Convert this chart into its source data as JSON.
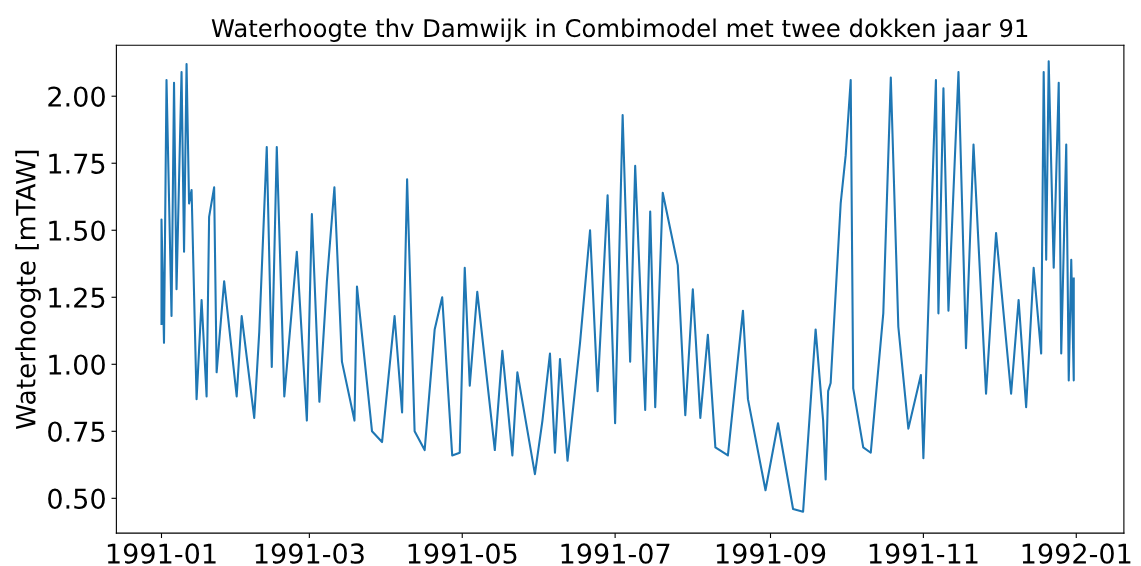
{
  "chart_data": {
    "type": "line",
    "title": "Waterhoogte thv Damwijk in Combimodel met twee dokken jaar 91",
    "ylabel": "Waterhoogte [mTAW]",
    "x": [
      "1991-01-01",
      "1991-01-01",
      "1991-01-02",
      "1991-01-03",
      "1991-01-05",
      "1991-01-06",
      "1991-01-07",
      "1991-01-09",
      "1991-01-10",
      "1991-01-11",
      "1991-01-12",
      "1991-01-13",
      "1991-01-15",
      "1991-01-17",
      "1991-01-19",
      "1991-01-20",
      "1991-01-22",
      "1991-01-23",
      "1991-01-26",
      "1991-01-31",
      "1991-02-02",
      "1991-02-07",
      "1991-02-09",
      "1991-02-12",
      "1991-02-14",
      "1991-02-16",
      "1991-02-19",
      "1991-02-24",
      "1991-02-28",
      "1991-03-02",
      "1991-03-05",
      "1991-03-08",
      "1991-03-11",
      "1991-03-14",
      "1991-03-19",
      "1991-03-20",
      "1991-03-26",
      "1991-03-30",
      "1991-04-04",
      "1991-04-07",
      "1991-04-09",
      "1991-04-12",
      "1991-04-16",
      "1991-04-20",
      "1991-04-23",
      "1991-04-27",
      "1991-04-30",
      "1991-05-02",
      "1991-05-04",
      "1991-05-07",
      "1991-05-14",
      "1991-05-17",
      "1991-05-21",
      "1991-05-23",
      "1991-05-30",
      "1991-06-02",
      "1991-06-05",
      "1991-06-07",
      "1991-06-09",
      "1991-06-12",
      "1991-06-17",
      "1991-06-21",
      "1991-06-24",
      "1991-06-28",
      "1991-07-01",
      "1991-07-04",
      "1991-07-07",
      "1991-07-09",
      "1991-07-13",
      "1991-07-15",
      "1991-07-17",
      "1991-07-20",
      "1991-07-26",
      "1991-07-29",
      "1991-08-01",
      "1991-08-04",
      "1991-08-07",
      "1991-08-10",
      "1991-08-15",
      "1991-08-21",
      "1991-08-23",
      "1991-08-30",
      "1991-09-04",
      "1991-09-10",
      "1991-09-14",
      "1991-09-19",
      "1991-09-22",
      "1991-09-23",
      "1991-09-24",
      "1991-09-25",
      "1991-09-29",
      "1991-10-01",
      "1991-10-03",
      "1991-10-04",
      "1991-10-08",
      "1991-10-11",
      "1991-10-16",
      "1991-10-19",
      "1991-10-22",
      "1991-10-26",
      "1991-10-31",
      "1991-11-01",
      "1991-11-06",
      "1991-11-07",
      "1991-11-09",
      "1991-11-11",
      "1991-11-15",
      "1991-11-18",
      "1991-11-21",
      "1991-11-26",
      "1991-11-30",
      "1991-12-06",
      "1991-12-09",
      "1991-12-12",
      "1991-12-15",
      "1991-12-18",
      "1991-12-19",
      "1991-12-20",
      "1991-12-21",
      "1991-12-23",
      "1991-12-25",
      "1991-12-26",
      "1991-12-28",
      "1991-12-29",
      "1991-12-30",
      "1991-12-31",
      "1991-12-31"
    ],
    "series": [
      {
        "color": "#1f77b4",
        "values": [
          1.15,
          1.54,
          1.08,
          2.06,
          1.18,
          2.05,
          1.28,
          2.09,
          1.42,
          2.12,
          1.6,
          1.65,
          0.87,
          1.24,
          0.88,
          1.55,
          1.66,
          0.97,
          1.31,
          0.88,
          1.18,
          0.8,
          1.12,
          1.81,
          0.99,
          1.81,
          0.88,
          1.42,
          0.79,
          1.56,
          0.86,
          1.31,
          1.66,
          1.01,
          0.79,
          1.29,
          0.75,
          0.71,
          1.18,
          0.82,
          1.69,
          0.75,
          0.68,
          1.13,
          1.25,
          0.66,
          0.67,
          1.36,
          0.92,
          1.27,
          0.68,
          1.05,
          0.66,
          0.97,
          0.59,
          0.79,
          1.04,
          0.67,
          1.02,
          0.64,
          1.08,
          1.5,
          0.9,
          1.63,
          0.78,
          1.93,
          1.01,
          1.74,
          0.83,
          1.57,
          0.84,
          1.64,
          1.37,
          0.81,
          1.28,
          0.8,
          1.11,
          0.69,
          0.66,
          1.2,
          0.87,
          0.53,
          0.78,
          0.46,
          0.45,
          1.13,
          0.79,
          0.57,
          0.9,
          0.93,
          1.6,
          1.78,
          2.06,
          0.91,
          0.69,
          0.67,
          1.19,
          2.07,
          1.14,
          0.76,
          0.96,
          0.65,
          2.06,
          1.19,
          2.03,
          1.2,
          2.09,
          1.06,
          1.82,
          0.89,
          1.49,
          0.89,
          1.24,
          0.84,
          1.36,
          1.04,
          2.09,
          1.39,
          2.13,
          1.36,
          2.05,
          1.04,
          1.82,
          0.94,
          1.39,
          0.94,
          1.32
        ]
      }
    ],
    "xlim": [
      "1990-12-14",
      "1992-01-20"
    ],
    "xticks": [
      "1991-01",
      "1991-03",
      "1991-05",
      "1991-07",
      "1991-09",
      "1991-11",
      "1992-01"
    ],
    "ylim": [
      0.37,
      2.19
    ],
    "yticks": [
      {
        "value": 0.5,
        "label": "0.50"
      },
      {
        "value": 0.75,
        "label": "0.75"
      },
      {
        "value": 1.0,
        "label": "1.00"
      },
      {
        "value": 1.25,
        "label": "1.25"
      },
      {
        "value": 1.5,
        "label": "1.50"
      },
      {
        "value": 1.75,
        "label": "1.75"
      },
      {
        "value": 2.0,
        "label": "2.00"
      }
    ],
    "line_style": "solid"
  }
}
